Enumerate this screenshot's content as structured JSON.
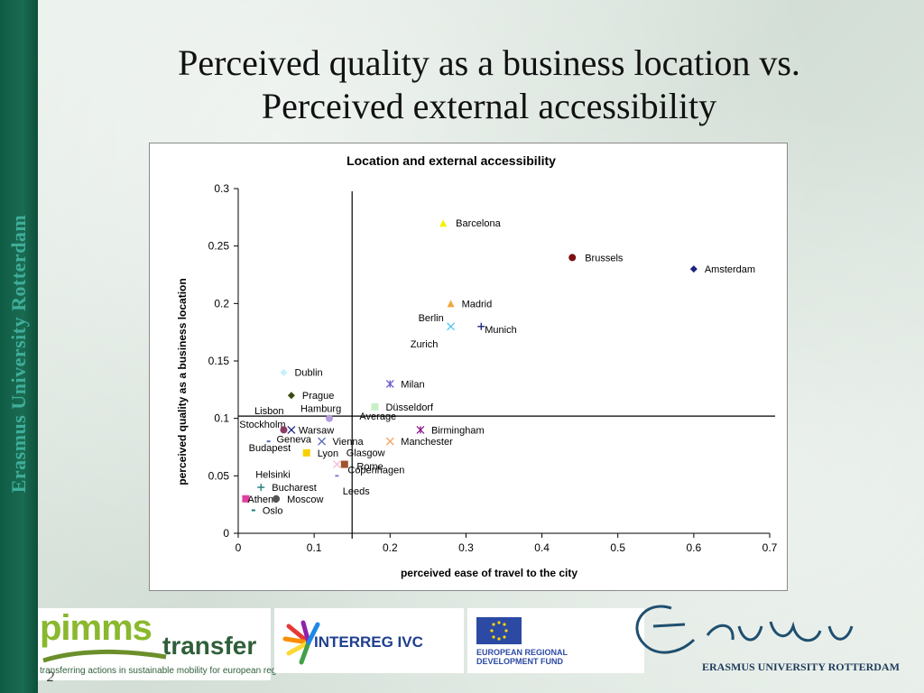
{
  "slide": {
    "title_line1": "Perceived quality as a business location vs.",
    "title_line2": "Perceived external accessibility",
    "sidebar_text": "Erasmus University Rotterdam",
    "page_number": "2"
  },
  "footer": {
    "pimms_word": "pimms",
    "transfer_word": "transfer",
    "pimms_tagline": "transferring actions in sustainable mobility for european regions",
    "interreg_label": "INTERREG IVC",
    "eu_line1": "EUROPEAN REGIONAL",
    "eu_line2": "DEVELOPMENT FUND",
    "erasmus_name": "ERASMUS UNIVERSITY ROTTERDAM"
  },
  "chart_data": {
    "type": "scatter",
    "title": "Location and external accessibility",
    "xlabel": "perceived ease of travel to the city",
    "ylabel": "perceived quality as a business location",
    "xlim": [
      0,
      0.7
    ],
    "ylim": [
      0,
      0.3
    ],
    "xticks": [
      "0",
      "0.1",
      "0.2",
      "0.3",
      "0.4",
      "0.5",
      "0.6",
      "0.7"
    ],
    "yticks": [
      "0",
      "0.05",
      "0.1",
      "0.15",
      "0.2",
      "0.25",
      "0.3"
    ],
    "grid": false,
    "reference_lines": {
      "x": 0.15,
      "y": 0.102
    },
    "points": [
      {
        "name": "Barcelona",
        "x": 0.27,
        "y": 0.27,
        "marker": "triangle",
        "color": "#f2f200",
        "label_dx": 14,
        "label_dy": 4
      },
      {
        "name": "Brussels",
        "x": 0.44,
        "y": 0.24,
        "marker": "circle",
        "color": "#7a1010",
        "label_dx": 14,
        "label_dy": 4
      },
      {
        "name": "Amsterdam",
        "x": 0.6,
        "y": 0.23,
        "marker": "diamond",
        "color": "#1a237e",
        "label_dx": 12,
        "label_dy": 4
      },
      {
        "name": "Madrid",
        "x": 0.28,
        "y": 0.2,
        "marker": "triangle",
        "color": "#f2a640",
        "label_dx": 12,
        "label_dy": 4
      },
      {
        "name": "Berlin",
        "x": 0.28,
        "y": 0.18,
        "marker": "x",
        "color": "#4fc3f7",
        "label_dx": -36,
        "label_dy": -6
      },
      {
        "name": "Munich",
        "x": 0.32,
        "y": 0.18,
        "marker": "plus",
        "color": "#1a237e",
        "label_dx": 4,
        "label_dy": 7
      },
      {
        "name": "Zurich",
        "x": 0.26,
        "y": 0.165,
        "marker": "none",
        "color": "#777777",
        "label_dx": -28,
        "label_dy": 4
      },
      {
        "name": "Dublin",
        "x": 0.06,
        "y": 0.14,
        "marker": "diamond",
        "color": "#c5f1fb",
        "label_dx": 12,
        "label_dy": 4
      },
      {
        "name": "Milan",
        "x": 0.2,
        "y": 0.13,
        "marker": "asterisk",
        "color": "#6a5acd",
        "label_dx": 12,
        "label_dy": 4
      },
      {
        "name": "Prague",
        "x": 0.07,
        "y": 0.12,
        "marker": "diamond",
        "color": "#3b4a10",
        "label_dx": 12,
        "label_dy": 4
      },
      {
        "name": "Düsseldorf",
        "x": 0.18,
        "y": 0.11,
        "marker": "square",
        "color": "#c8f0c8",
        "label_dx": 12,
        "label_dy": 4
      },
      {
        "name": "Lisbon",
        "x": 0.05,
        "y": 0.107,
        "marker": "none",
        "color": "#777777",
        "label_dx": -24,
        "label_dy": 4
      },
      {
        "name": "Hamburg",
        "x": 0.12,
        "y": 0.1,
        "marker": "circle",
        "color": "#b39ddb",
        "label_dx": -32,
        "label_dy": -7
      },
      {
        "name": "Stockholm",
        "x": 0.03,
        "y": 0.095,
        "marker": "none",
        "color": "#777777",
        "label_dx": -24,
        "label_dy": 4
      },
      {
        "name": "Warsaw",
        "x": 0.07,
        "y": 0.09,
        "marker": "x",
        "color": "#1a237e",
        "label_dx": 8,
        "label_dy": 4
      },
      {
        "name": "Average",
        "x": 0.155,
        "y": 0.102,
        "marker": "none",
        "color": "#777777",
        "label_dx": 4,
        "label_dy": 4
      },
      {
        "name": "Birmingham",
        "x": 0.24,
        "y": 0.09,
        "marker": "asterisk",
        "color": "#8b1a8b",
        "label_dx": 12,
        "label_dy": 4
      },
      {
        "name": "Geneva",
        "x": 0.06,
        "y": 0.09,
        "marker": "circle",
        "color": "#8b3a62",
        "label_dx": -8,
        "label_dy": 14
      },
      {
        "name": "Vienna",
        "x": 0.11,
        "y": 0.08,
        "marker": "x",
        "color": "#5c6bc0",
        "label_dx": 12,
        "label_dy": 4
      },
      {
        "name": "Manchester",
        "x": 0.2,
        "y": 0.08,
        "marker": "x",
        "color": "#f4a460",
        "label_dx": 12,
        "label_dy": 4
      },
      {
        "name": "Budapest",
        "x": 0.04,
        "y": 0.08,
        "marker": "dash",
        "color": "#5c6bc0",
        "label_dx": -22,
        "label_dy": 11
      },
      {
        "name": "Lyon",
        "x": 0.09,
        "y": 0.07,
        "marker": "square",
        "color": "#f7d000",
        "label_dx": 12,
        "label_dy": 4
      },
      {
        "name": "Glasgow",
        "x": 0.14,
        "y": 0.06,
        "marker": "square",
        "color": "#a0522d",
        "label_dx": 2,
        "label_dy": -9
      },
      {
        "name": "Rome",
        "x": 0.13,
        "y": 0.06,
        "marker": "x",
        "color": "#f5b7d8",
        "label_dx": 22,
        "label_dy": 6
      },
      {
        "name": "Copenhagen",
        "x": 0.13,
        "y": 0.05,
        "marker": "dash",
        "color": "#9575cd",
        "label_dx": 12,
        "label_dy": -3
      },
      {
        "name": "Leeds",
        "x": 0.14,
        "y": 0.04,
        "marker": "none",
        "color": "#777777",
        "label_dx": -2,
        "label_dy": 8
      },
      {
        "name": "Helsinki",
        "x": 0.03,
        "y": 0.05,
        "marker": "none",
        "color": "#777777",
        "label_dx": -6,
        "label_dy": 2
      },
      {
        "name": "Bucharest",
        "x": 0.03,
        "y": 0.04,
        "marker": "plus",
        "color": "#1a7a7a",
        "label_dx": 12,
        "label_dy": 4
      },
      {
        "name": "Athens",
        "x": 0.01,
        "y": 0.03,
        "marker": "square",
        "color": "#e040a0",
        "label_dx": 2,
        "label_dy": 4
      },
      {
        "name": "Moscow",
        "x": 0.05,
        "y": 0.03,
        "marker": "circle",
        "color": "#555555",
        "label_dx": 12,
        "label_dy": 4
      },
      {
        "name": "Oslo",
        "x": 0.02,
        "y": 0.02,
        "marker": "dash",
        "color": "#1a7a7a",
        "label_dx": 10,
        "label_dy": 4
      }
    ]
  }
}
